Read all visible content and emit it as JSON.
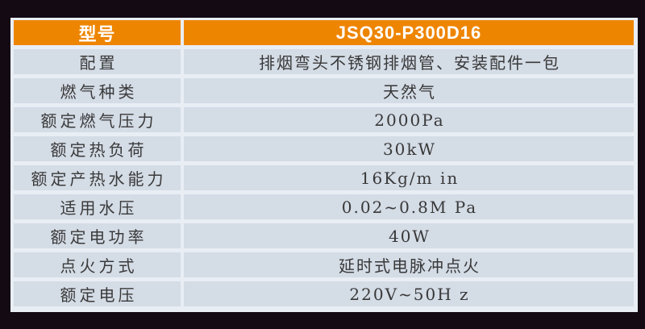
{
  "colors": {
    "page_background": "#130a14",
    "table_frame": "#e9eef5",
    "header_background": "#ee8500",
    "header_text": "#ffffff",
    "row_background": "#d4dce6",
    "row_text": "#3a3a3a"
  },
  "table": {
    "header": {
      "label": "型号",
      "value": "JSQ30-P300D16"
    },
    "rows": [
      {
        "label": "配置",
        "value": "排烟弯头不锈钢排烟管、安装配件一包"
      },
      {
        "label": "燃气种类",
        "value": "天然气"
      },
      {
        "label": "额定燃气压力",
        "value": "2000Pa"
      },
      {
        "label": "额定热负荷",
        "value": "30kW"
      },
      {
        "label": "额定产热水能力",
        "value": "16Kg/m in"
      },
      {
        "label": "适用水压",
        "value": "0.02~0.8M Pa"
      },
      {
        "label": "额定电功率",
        "value": "40W"
      },
      {
        "label": "点火方式",
        "value": "延时式电脉冲点火"
      },
      {
        "label": "额定电压",
        "value": "220V~50H z"
      }
    ]
  }
}
